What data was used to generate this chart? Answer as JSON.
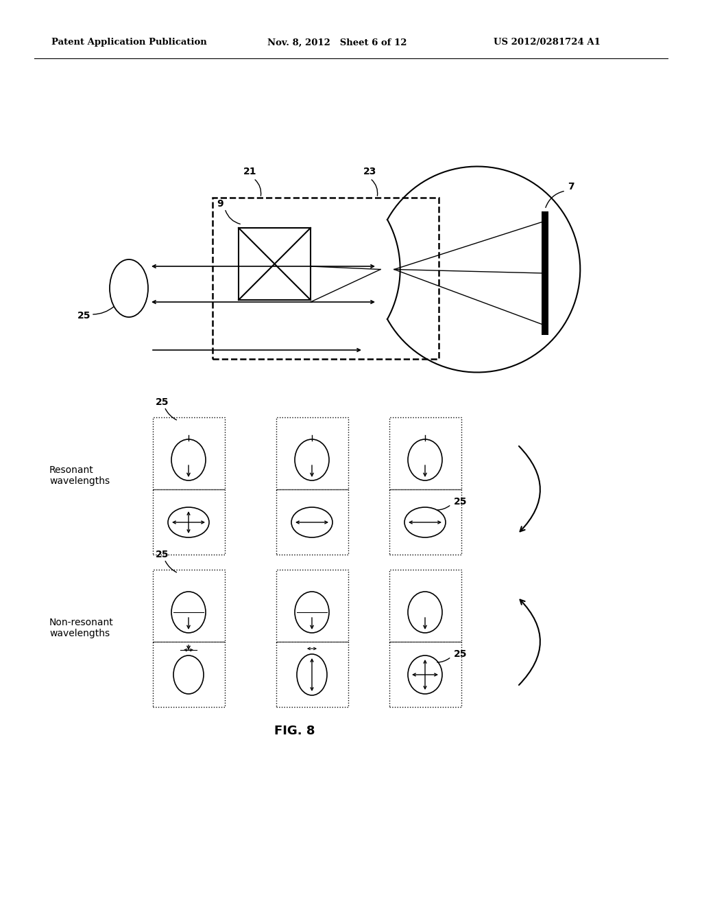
{
  "bg_color": "#ffffff",
  "header_left": "Patent Application Publication",
  "header_mid": "Nov. 8, 2012   Sheet 6 of 12",
  "header_right": "US 2012/0281724 A1",
  "fig_label": "FIG. 8",
  "label_resonant": "Resonant\nwavelengths",
  "label_nonresonant": "Non-resonant\nwavelengths"
}
